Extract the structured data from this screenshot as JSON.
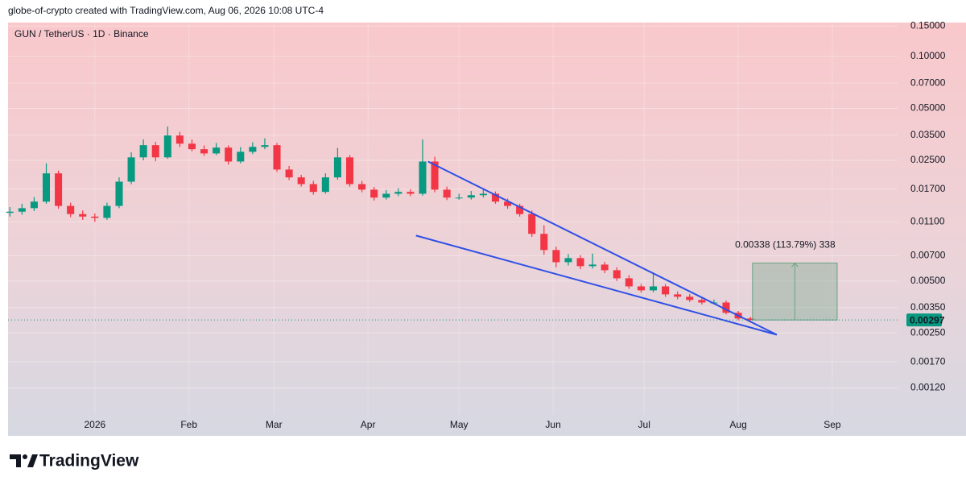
{
  "header": "globe-of-crypto created with TradingView.com, Aug 06, 2026 10:08 UTC-4",
  "footer": {
    "brand": "TradingView"
  },
  "chart_data": {
    "type": "candlestick",
    "title": "GUN / TetherUS · 1D · Binance",
    "log_scale": true,
    "grid": true,
    "up_color": "#089981",
    "down_color": "#f23645",
    "xlim": [
      -28.6,
      264.5
    ],
    "xticks": [
      {
        "value": 0,
        "label": "2026"
      },
      {
        "value": 31,
        "label": "Feb"
      },
      {
        "value": 59,
        "label": "Mar"
      },
      {
        "value": 90,
        "label": "Apr"
      },
      {
        "value": 120,
        "label": "May"
      },
      {
        "value": 151,
        "label": "Jun"
      },
      {
        "value": 181,
        "label": "Jul"
      },
      {
        "value": 212,
        "label": "Aug"
      },
      {
        "value": 243,
        "label": "Sep"
      }
    ],
    "ylim": [
      0.00064,
      0.157
    ],
    "yticks": [
      {
        "value": 0.15,
        "label": "0.15000"
      },
      {
        "value": 0.1,
        "label": "0.10000"
      },
      {
        "value": 0.07,
        "label": "0.07000"
      },
      {
        "value": 0.05,
        "label": "0.05000"
      },
      {
        "value": 0.035,
        "label": "0.03500"
      },
      {
        "value": 0.025,
        "label": "0.02500"
      },
      {
        "value": 0.017,
        "label": "0.01700"
      },
      {
        "value": 0.011,
        "label": "0.01100"
      },
      {
        "value": 0.007,
        "label": "0.00700"
      },
      {
        "value": 0.005,
        "label": "0.00500"
      },
      {
        "value": 0.0035,
        "label": "0.00350"
      },
      {
        "value": 0.0025,
        "label": "0.00250"
      },
      {
        "value": 0.0017,
        "label": "0.00170"
      },
      {
        "value": 0.0012,
        "label": "0.00120"
      }
    ],
    "x": [
      -28,
      -24,
      -20,
      -16,
      -12,
      -8,
      -4,
      0,
      4,
      8,
      12,
      16,
      20,
      24,
      28,
      32,
      36,
      40,
      44,
      48,
      52,
      56,
      60,
      64,
      68,
      72,
      76,
      80,
      84,
      88,
      92,
      96,
      100,
      104,
      108,
      112,
      116,
      120,
      124,
      128,
      132,
      136,
      140,
      144,
      148,
      152,
      156,
      160,
      164,
      168,
      172,
      176,
      180,
      184,
      188,
      192,
      196,
      200,
      204,
      208,
      212,
      216
    ],
    "open": [
      0.0124,
      0.0126,
      0.0132,
      0.0144,
      0.021,
      0.0136,
      0.0122,
      0.0118,
      0.0116,
      0.0136,
      0.0188,
      0.026,
      0.0306,
      0.026,
      0.0348,
      0.0312,
      0.029,
      0.0274,
      0.0296,
      0.0246,
      0.028,
      0.0299,
      0.0306,
      0.0221,
      0.0199,
      0.0182,
      0.0164,
      0.0199,
      0.026,
      0.0182,
      0.0169,
      0.0152,
      0.016,
      0.0164,
      0.016,
      0.0246,
      0.0169,
      0.0152,
      0.0152,
      0.0157,
      0.016,
      0.0144,
      0.0136,
      0.0122,
      0.00937,
      0.00755,
      0.00642,
      0.00678,
      0.00609,
      0.00622,
      0.00577,
      0.00518,
      0.00465,
      0.00441,
      0.00465,
      0.00418,
      0.00405,
      0.00388,
      0.00375,
      0.00375,
      0.00327,
      0.00303
    ],
    "high": [
      0.0134,
      0.014,
      0.0153,
      0.024,
      0.0218,
      0.0142,
      0.0128,
      0.0123,
      0.0142,
      0.0199,
      0.0278,
      0.033,
      0.032,
      0.0392,
      0.0365,
      0.033,
      0.0305,
      0.0315,
      0.0305,
      0.0298,
      0.0318,
      0.0335,
      0.0315,
      0.0232,
      0.0206,
      0.019,
      0.021,
      0.0295,
      0.0268,
      0.019,
      0.0175,
      0.0168,
      0.0172,
      0.017,
      0.033,
      0.0262,
      0.0176,
      0.016,
      0.0166,
      0.017,
      0.0165,
      0.015,
      0.014,
      0.0128,
      0.0105,
      0.0079,
      0.00715,
      0.00705,
      0.0072,
      0.00645,
      0.006,
      0.0054,
      0.0048,
      0.0056,
      0.0048,
      0.00435,
      0.0042,
      0.004,
      0.0039,
      0.00385,
      0.00335,
      0.0031
    ],
    "low": [
      0.0118,
      0.0121,
      0.0127,
      0.014,
      0.0131,
      0.0117,
      0.0113,
      0.011,
      0.0113,
      0.0132,
      0.0182,
      0.025,
      0.0247,
      0.0255,
      0.0298,
      0.0282,
      0.0265,
      0.0268,
      0.0236,
      0.024,
      0.0272,
      0.029,
      0.0214,
      0.0192,
      0.0176,
      0.0158,
      0.016,
      0.0193,
      0.0176,
      0.0163,
      0.0146,
      0.0148,
      0.0155,
      0.0155,
      0.0156,
      0.0163,
      0.0147,
      0.0148,
      0.0148,
      0.0152,
      0.014,
      0.0131,
      0.0118,
      0.009,
      0.0071,
      0.006,
      0.00615,
      0.00585,
      0.0059,
      0.00555,
      0.005,
      0.0045,
      0.00428,
      0.0043,
      0.00405,
      0.00392,
      0.00378,
      0.00365,
      0.00366,
      0.0032,
      0.00296,
      0.0029
    ],
    "close": [
      0.0126,
      0.0132,
      0.0144,
      0.021,
      0.0136,
      0.0122,
      0.0118,
      0.0116,
      0.0136,
      0.0188,
      0.026,
      0.0306,
      0.026,
      0.0348,
      0.0312,
      0.029,
      0.0274,
      0.0296,
      0.0246,
      0.028,
      0.0299,
      0.0306,
      0.0221,
      0.0199,
      0.0182,
      0.0164,
      0.0199,
      0.026,
      0.0182,
      0.0169,
      0.0152,
      0.016,
      0.0164,
      0.016,
      0.0246,
      0.0169,
      0.0152,
      0.0152,
      0.0157,
      0.016,
      0.0144,
      0.0136,
      0.0122,
      0.00937,
      0.00755,
      0.00642,
      0.00678,
      0.00609,
      0.00622,
      0.00577,
      0.00518,
      0.00465,
      0.00441,
      0.00465,
      0.00418,
      0.00405,
      0.00388,
      0.00375,
      0.00375,
      0.00327,
      0.00303,
      0.00297
    ],
    "trendlines": [
      {
        "color": "#2f4fe6",
        "x": [
          109.8,
          224.7
        ],
        "values": [
          0.0246,
          0.00244
        ]
      },
      {
        "color": "#2f4fe6",
        "x": [
          105.8,
          224.7
        ],
        "values": [
          0.00916,
          0.00244
        ]
      }
    ],
    "measure": {
      "color": "#6aa384",
      "x": [
        216.7,
        244.6
      ],
      "values": [
        0.00297,
        0.00635
      ],
      "label": "0.00338 (113.79%) 338"
    },
    "last_price": {
      "value": 0.00297,
      "color": "#089981"
    }
  }
}
